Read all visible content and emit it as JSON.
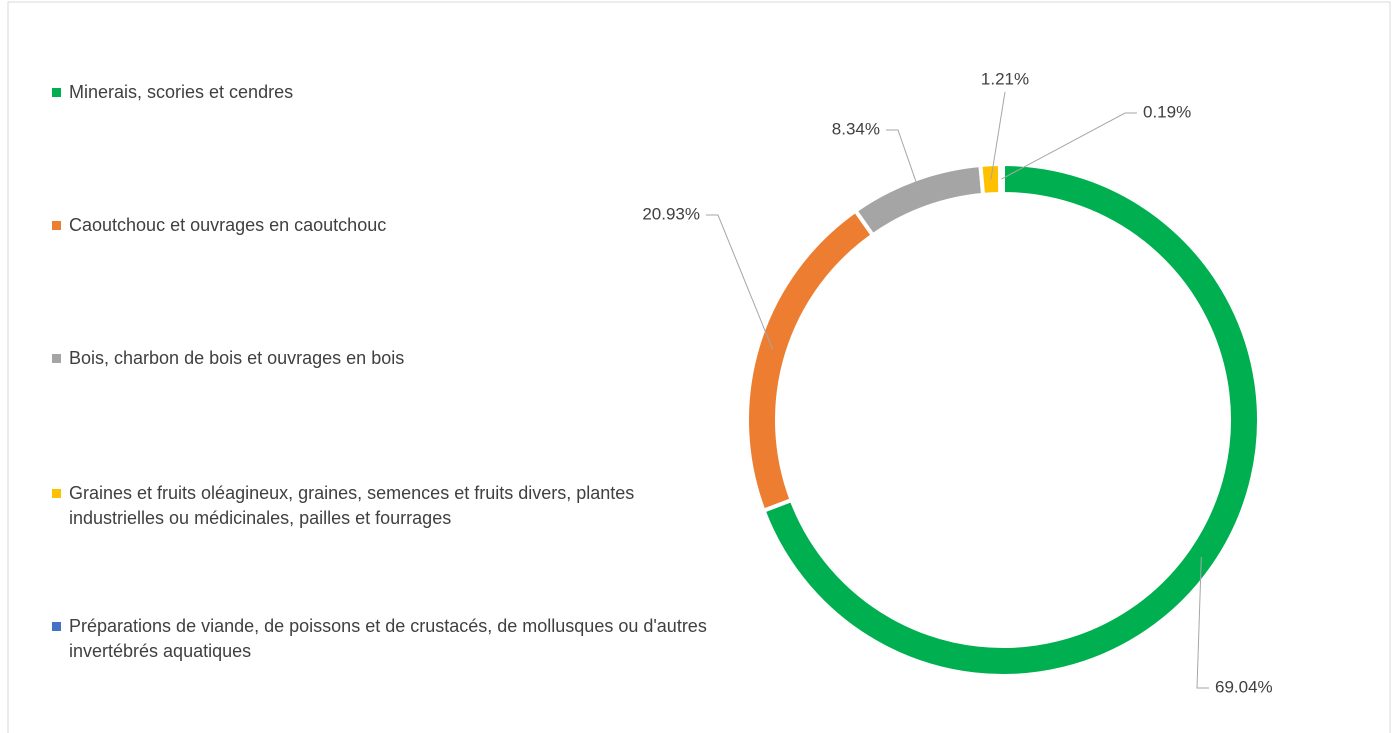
{
  "chart_data": {
    "type": "doughnut",
    "categories": [
      "Minerais, scories et cendres",
      "Caoutchouc et ouvrages en caoutchouc",
      "Bois, charbon de bois et ouvrages en bois",
      "Graines et fruits oléagineux, graines, semences et fruits divers, plantes industrielles ou médicinales, pailles et fourrages",
      "Préparations de viande, de poissons et de crustacés, de mollusques ou d'autres invertébrés aquatiques"
    ],
    "values": [
      69.04,
      20.93,
      8.34,
      1.21,
      0.19
    ],
    "value_labels": [
      "69.04%",
      "20.93%",
      "8.34%",
      "1.21%",
      "0.19%"
    ],
    "colors": [
      "#00b050",
      "#ed7d31",
      "#a5a5a5",
      "#ffc000",
      "#4472c4"
    ],
    "legend": "left"
  }
}
